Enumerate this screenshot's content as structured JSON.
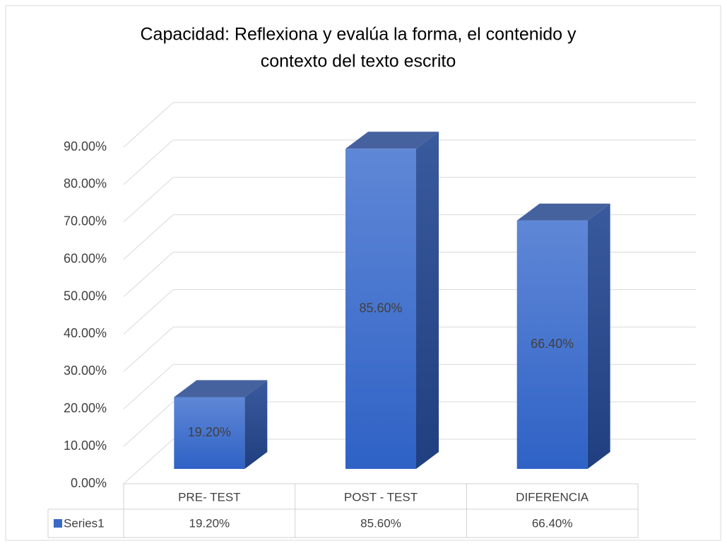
{
  "chart_data": {
    "type": "bar3d",
    "title": [
      "Capacidad: Reflexiona y evalúa la forma, el contenido y",
      "contexto del texto escrito"
    ],
    "categories": [
      "PRE- TEST",
      "POST - TEST",
      "DIFERENCIA"
    ],
    "series": [
      {
        "name": "Series1",
        "color": "#3a69c8",
        "values": [
          19.2,
          85.6,
          66.4
        ],
        "value_labels": [
          "19.20%",
          "85.60%",
          "66.40%"
        ]
      }
    ],
    "ylim": [
      0,
      90
    ],
    "yticks": [
      {
        "value": 0,
        "label": "0.00%"
      },
      {
        "value": 10,
        "label": "10.00%"
      },
      {
        "value": 20,
        "label": "20.00%"
      },
      {
        "value": 30,
        "label": "30.00%"
      },
      {
        "value": 40,
        "label": "40.00%"
      },
      {
        "value": 50,
        "label": "50.00%"
      },
      {
        "value": 60,
        "label": "60.00%"
      },
      {
        "value": 70,
        "label": "70.00%"
      },
      {
        "value": 80,
        "label": "80.00%"
      },
      {
        "value": 90,
        "label": "90.00%"
      }
    ],
    "grid": true,
    "data_table": true
  }
}
